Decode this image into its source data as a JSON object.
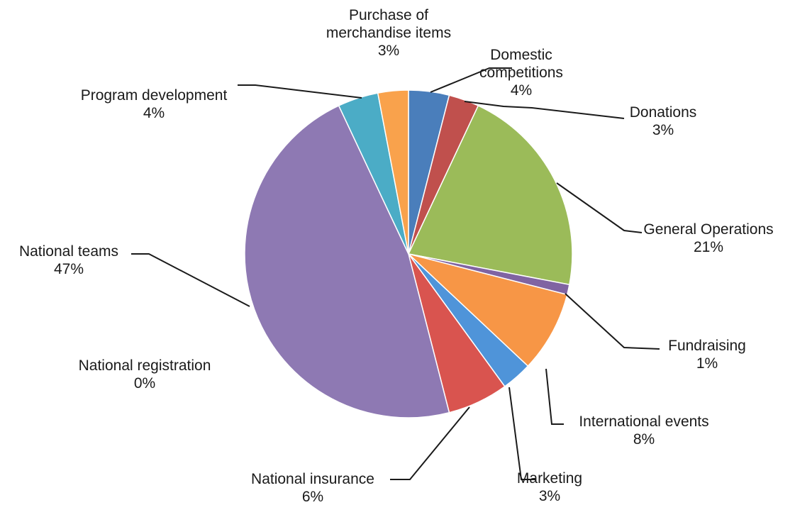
{
  "chart_data": {
    "type": "pie",
    "title": "",
    "slices": [
      {
        "label": "Domestic competitions",
        "value": 4,
        "value_label": "4%",
        "color": "#4a7ebb"
      },
      {
        "label": "Donations",
        "value": 3,
        "value_label": "3%",
        "color": "#c0504d"
      },
      {
        "label": "General Operations",
        "value": 21,
        "value_label": "21%",
        "color": "#9bbb59"
      },
      {
        "label": "Fundraising",
        "value": 1,
        "value_label": "1%",
        "color": "#8064a2"
      },
      {
        "label": "International events",
        "value": 8,
        "value_label": "8%",
        "color": "#f79646"
      },
      {
        "label": "Marketing",
        "value": 3,
        "value_label": "3%",
        "color": "#4f94d9"
      },
      {
        "label": "National insurance",
        "value": 6,
        "value_label": "6%",
        "color": "#d9544f"
      },
      {
        "label": "National registration",
        "value": 0,
        "value_label": "0%",
        "color": "#a6c86b"
      },
      {
        "label": "National teams",
        "value": 47,
        "value_label": "47%",
        "color": "#8e79b3"
      },
      {
        "label": "Program development",
        "value": 4,
        "value_label": "4%",
        "color": "#4bacc6"
      },
      {
        "label": "Purchase of merchandise items",
        "value": 3,
        "value_label": "3%",
        "color": "#f9a24c"
      }
    ]
  }
}
